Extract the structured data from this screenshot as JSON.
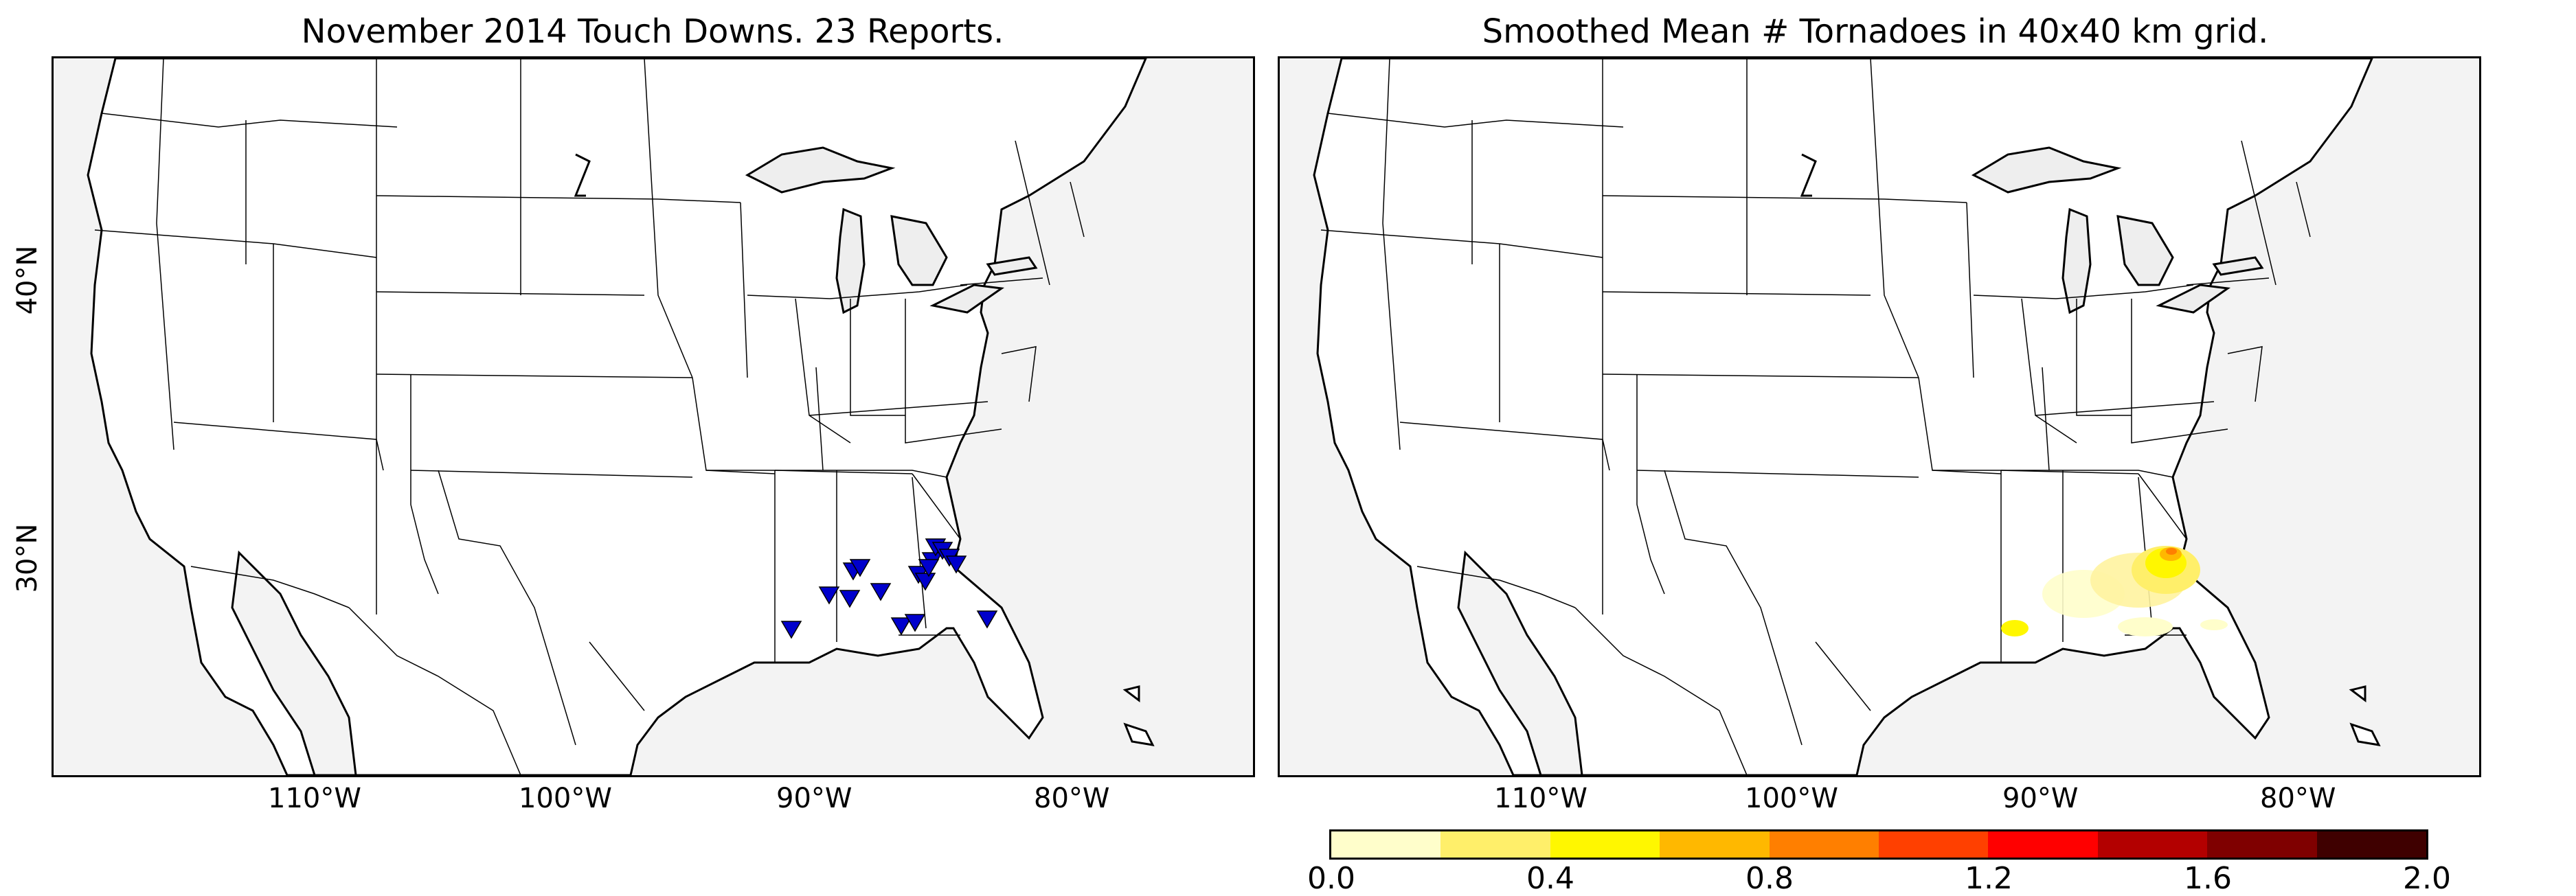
{
  "maps": [
    {
      "title": "November 2014 Touch Downs. 23 Reports.",
      "lon_ticks": [
        "110°W",
        "100°W",
        "90°W",
        "80°W"
      ],
      "lat_ticks": [
        "40°N",
        "30°N"
      ]
    },
    {
      "title": "Smoothed Mean # Tornadoes in 40x40 km grid.",
      "lon_ticks": [
        "110°W",
        "100°W",
        "90°W",
        "80°W"
      ]
    }
  ],
  "colorbar": {
    "ticks": [
      "0.0",
      "0.4",
      "0.8",
      "1.2",
      "1.6",
      "2.0"
    ],
    "colors": [
      "#fffecb",
      "#ffef6a",
      "#fff700",
      "#ffb800",
      "#ff7f00",
      "#ff4000",
      "#ff0000",
      "#b30000",
      "#7f0000",
      "#3f0000"
    ]
  },
  "tornado_marker_color": "#0000cc"
}
